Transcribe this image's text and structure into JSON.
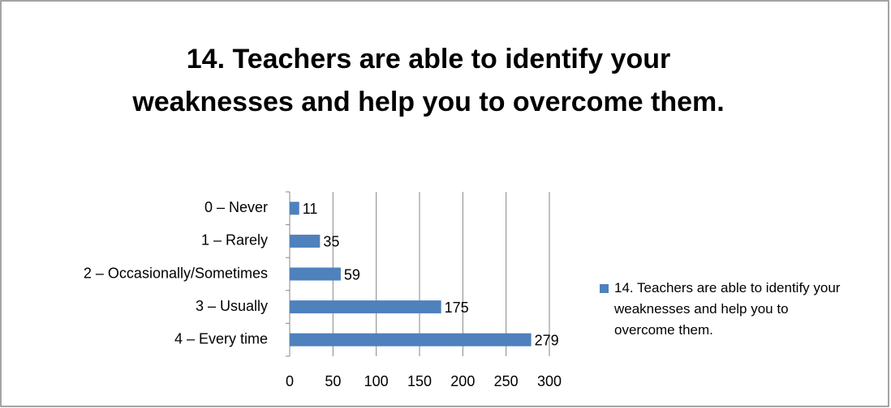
{
  "chart_data": {
    "type": "barh",
    "title": "14. Teachers are able to identify your weaknesses and help you to overcome them.",
    "categories": [
      "0 – Never",
      "1 – Rarely",
      "2 – Occasionally/Sometimes",
      "3 – Usually",
      "4 – Every time"
    ],
    "series": [
      {
        "name": "14. Teachers are able to identify your weaknesses and help you to overcome them.",
        "color": "#4f81bd",
        "values": [
          11,
          35,
          59,
          175,
          279
        ]
      }
    ],
    "xlim": [
      0,
      300
    ],
    "xticks": [
      0,
      50,
      100,
      150,
      200,
      250,
      300
    ],
    "grid": true,
    "legend": "right"
  }
}
